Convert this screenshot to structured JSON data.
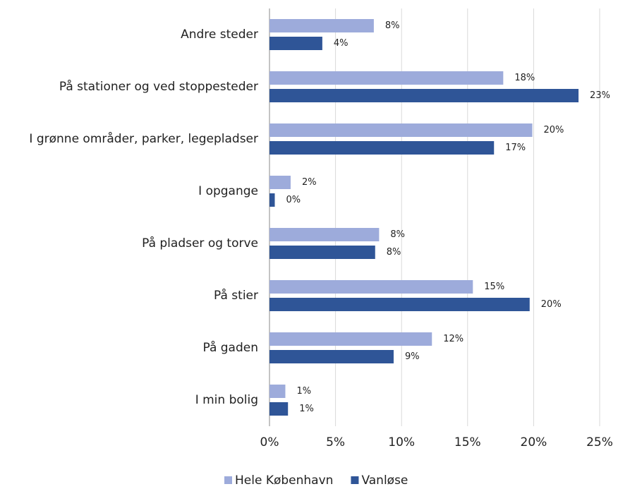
{
  "chart_data": {
    "type": "hbar",
    "categories": [
      "Andre steder",
      "På stationer og ved stoppesteder",
      "I grønne områder, parker, legepladser",
      "I opgange",
      "På pladser og torve",
      "På stier",
      "På gaden",
      "I min bolig"
    ],
    "series": [
      {
        "name": "Hele København",
        "color": "#9dabdb",
        "values": [
          7.9,
          17.7,
          19.9,
          1.6,
          8.3,
          15.4,
          12.3,
          1.2
        ],
        "value_labels": [
          "8%",
          "18%",
          "20%",
          "2%",
          "8%",
          "15%",
          "12%",
          "1%"
        ]
      },
      {
        "name": "Vanløse",
        "color": "#2f5597",
        "values": [
          4.0,
          23.4,
          17.0,
          0.4,
          8.0,
          19.7,
          9.4,
          1.4
        ],
        "value_labels": [
          "4%",
          "23%",
          "17%",
          "0%",
          "8%",
          "20%",
          "9%",
          "1%"
        ]
      }
    ],
    "xlim": [
      0,
      25
    ],
    "xticks": [
      {
        "value": 0,
        "label": "0%"
      },
      {
        "value": 5,
        "label": "5%"
      },
      {
        "value": 10,
        "label": "10%"
      },
      {
        "value": 15,
        "label": "15%"
      },
      {
        "value": 20,
        "label": "20%"
      },
      {
        "value": 25,
        "label": "25%"
      }
    ],
    "grid": true,
    "legend": "bottom"
  }
}
